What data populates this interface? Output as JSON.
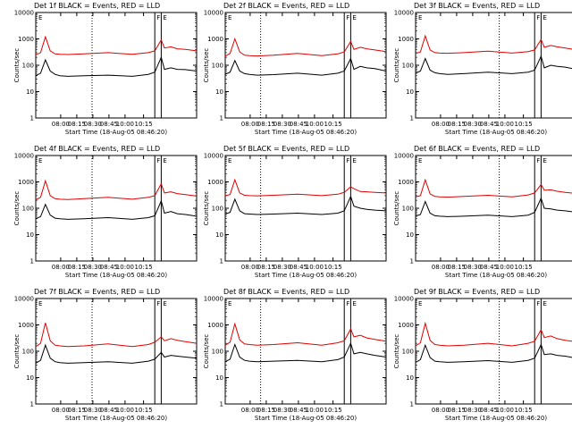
{
  "figure": {
    "colors": {
      "events": "#000000",
      "lld": "#e00000",
      "background": "#ffffff"
    },
    "start_time_label": "Start Time (18-Aug-05 08:46:20)",
    "ylabel": "Counts/sec",
    "xticks": [
      "08:00",
      "08:15",
      "08:30",
      "08:45",
      "10:00",
      "10:15"
    ],
    "yticks": [
      "1",
      "10",
      "100",
      "1000",
      "10000"
    ],
    "marker_letters": [
      "E",
      "F",
      "E"
    ]
  },
  "chart_data": [
    {
      "type": "line",
      "title": "Det 1f BLACK = Events, RED = LLD",
      "xlabel": "Start Time (18-Aug-05 08:46:20)",
      "ylabel": "Counts/sec",
      "yscale": "log",
      "ylim": [
        1,
        10000
      ],
      "xticks": [
        "08:00",
        "08:15",
        "08:30",
        "08:45",
        "10:00",
        "10:15"
      ],
      "grid": false,
      "series": [
        {
          "name": "Events",
          "color": "#000000",
          "x": [
            0,
            0.03,
            0.06,
            0.09,
            0.12,
            0.15,
            0.2,
            0.3,
            0.45,
            0.6,
            0.7,
            0.74,
            0.78,
            0.8,
            0.84,
            0.88,
            0.93,
            1
          ],
          "y": [
            40,
            50,
            160,
            60,
            45,
            40,
            38,
            40,
            42,
            38,
            45,
            55,
            200,
            70,
            80,
            70,
            68,
            60
          ]
        },
        {
          "name": "LLD",
          "color": "#e00000",
          "x": [
            0,
            0.03,
            0.06,
            0.09,
            0.12,
            0.15,
            0.2,
            0.3,
            0.45,
            0.6,
            0.7,
            0.74,
            0.78,
            0.8,
            0.84,
            0.88,
            0.93,
            1
          ],
          "y": [
            250,
            300,
            1200,
            350,
            270,
            260,
            255,
            270,
            300,
            260,
            300,
            350,
            900,
            450,
            500,
            420,
            400,
            350
          ]
        }
      ]
    },
    {
      "type": "line",
      "title": "Det 2f BLACK = Events, RED = LLD",
      "xlabel": "Start Time (18-Aug-05 08:46:20)",
      "ylabel": "Counts/sec",
      "yscale": "log",
      "ylim": [
        1,
        10000
      ],
      "xticks": [
        "08:00",
        "08:15",
        "08:30",
        "08:45",
        "10:00",
        "10:15"
      ],
      "grid": false,
      "series": [
        {
          "name": "Events",
          "color": "#000000",
          "x": [
            0,
            0.03,
            0.06,
            0.09,
            0.12,
            0.15,
            0.2,
            0.3,
            0.45,
            0.6,
            0.7,
            0.74,
            0.78,
            0.8,
            0.84,
            0.88,
            0.93,
            1
          ],
          "y": [
            45,
            55,
            150,
            60,
            48,
            45,
            42,
            44,
            50,
            42,
            50,
            60,
            180,
            70,
            90,
            80,
            75,
            60
          ]
        },
        {
          "name": "LLD",
          "color": "#e00000",
          "x": [
            0,
            0.03,
            0.06,
            0.09,
            0.12,
            0.15,
            0.2,
            0.3,
            0.45,
            0.6,
            0.7,
            0.74,
            0.78,
            0.8,
            0.84,
            0.88,
            0.93,
            1
          ],
          "y": [
            220,
            280,
            1000,
            320,
            240,
            230,
            225,
            240,
            280,
            230,
            270,
            320,
            800,
            400,
            480,
            420,
            380,
            330
          ]
        }
      ]
    },
    {
      "type": "line",
      "title": "Det 3f BLACK = Events, RED = LLD",
      "xlabel": "Start Time (18-Aug-05 08:46:20)",
      "ylabel": "Counts/sec",
      "yscale": "log",
      "ylim": [
        1,
        10000
      ],
      "xticks": [
        "08:00",
        "08:15",
        "08:30",
        "08:45",
        "10:00",
        "10:15"
      ],
      "grid": false,
      "series": [
        {
          "name": "Events",
          "color": "#000000",
          "x": [
            0,
            0.03,
            0.06,
            0.09,
            0.12,
            0.15,
            0.2,
            0.3,
            0.45,
            0.6,
            0.7,
            0.74,
            0.78,
            0.8,
            0.84,
            0.88,
            0.93,
            1
          ],
          "y": [
            50,
            60,
            180,
            65,
            52,
            48,
            45,
            48,
            55,
            48,
            55,
            65,
            220,
            80,
            100,
            90,
            85,
            70
          ]
        },
        {
          "name": "LLD",
          "color": "#e00000",
          "x": [
            0,
            0.03,
            0.06,
            0.09,
            0.12,
            0.15,
            0.2,
            0.3,
            0.45,
            0.6,
            0.7,
            0.74,
            0.78,
            0.8,
            0.84,
            0.88,
            0.93,
            1
          ],
          "y": [
            280,
            320,
            1300,
            380,
            300,
            290,
            285,
            300,
            340,
            290,
            330,
            380,
            950,
            480,
            560,
            500,
            450,
            380
          ]
        }
      ]
    },
    {
      "type": "line",
      "title": "Det 4f BLACK = Events, RED = LLD",
      "xlabel": "Start Time (18-Aug-05 08:46:20)",
      "ylabel": "Counts/sec",
      "yscale": "log",
      "ylim": [
        1,
        10000
      ],
      "xticks": [
        "08:00",
        "08:15",
        "08:30",
        "08:45",
        "10:00",
        "10:15"
      ],
      "grid": false,
      "series": [
        {
          "name": "Events",
          "color": "#000000",
          "x": [
            0,
            0.03,
            0.06,
            0.09,
            0.12,
            0.15,
            0.2,
            0.3,
            0.45,
            0.6,
            0.7,
            0.74,
            0.78,
            0.8,
            0.84,
            0.88,
            0.93,
            1
          ],
          "y": [
            40,
            48,
            140,
            55,
            42,
            40,
            38,
            40,
            44,
            38,
            44,
            52,
            190,
            65,
            75,
            62,
            58,
            50
          ]
        },
        {
          "name": "LLD",
          "color": "#e00000",
          "x": [
            0,
            0.03,
            0.06,
            0.09,
            0.12,
            0.15,
            0.2,
            0.3,
            0.45,
            0.6,
            0.7,
            0.74,
            0.78,
            0.8,
            0.84,
            0.88,
            0.93,
            1
          ],
          "y": [
            210,
            260,
            1100,
            300,
            230,
            220,
            215,
            230,
            260,
            220,
            260,
            300,
            850,
            380,
            420,
            360,
            330,
            290
          ]
        }
      ]
    },
    {
      "type": "line",
      "title": "Det 5f BLACK = Events, RED = LLD",
      "xlabel": "Start Time (18-Aug-05 08:46:20)",
      "ylabel": "Counts/sec",
      "yscale": "log",
      "ylim": [
        1,
        10000
      ],
      "xticks": [
        "08:00",
        "08:15",
        "08:30",
        "08:45",
        "10:00",
        "10:15"
      ],
      "grid": false,
      "series": [
        {
          "name": "Events",
          "color": "#000000",
          "x": [
            0,
            0.03,
            0.06,
            0.09,
            0.12,
            0.15,
            0.2,
            0.3,
            0.45,
            0.6,
            0.7,
            0.74,
            0.78,
            0.8,
            0.84,
            0.88,
            0.93,
            1
          ],
          "y": [
            60,
            70,
            220,
            80,
            62,
            60,
            58,
            60,
            65,
            58,
            65,
            80,
            280,
            120,
            100,
            90,
            85,
            80
          ]
        },
        {
          "name": "LLD",
          "color": "#e00000",
          "x": [
            0,
            0.03,
            0.06,
            0.09,
            0.12,
            0.15,
            0.2,
            0.3,
            0.45,
            0.6,
            0.7,
            0.74,
            0.78,
            0.8,
            0.84,
            0.88,
            0.93,
            1
          ],
          "y": [
            300,
            330,
            1200,
            380,
            310,
            300,
            295,
            310,
            340,
            300,
            340,
            400,
            650,
            550,
            430,
            420,
            400,
            380
          ]
        }
      ]
    },
    {
      "type": "line",
      "title": "Det 6f BLACK = Events, RED = LLD",
      "xlabel": "Start Time (18-Aug-05 08:46:20)",
      "ylabel": "Counts/sec",
      "yscale": "log",
      "ylim": [
        1,
        10000
      ],
      "xticks": [
        "08:00",
        "08:15",
        "08:30",
        "08:45",
        "10:00",
        "10:15"
      ],
      "grid": false,
      "series": [
        {
          "name": "Events",
          "color": "#000000",
          "x": [
            0,
            0.03,
            0.06,
            0.09,
            0.12,
            0.15,
            0.2,
            0.3,
            0.45,
            0.6,
            0.7,
            0.74,
            0.78,
            0.8,
            0.84,
            0.88,
            0.93,
            1
          ],
          "y": [
            50,
            58,
            180,
            65,
            52,
            50,
            48,
            50,
            55,
            48,
            55,
            70,
            240,
            100,
            95,
            85,
            80,
            70
          ]
        },
        {
          "name": "LLD",
          "color": "#e00000",
          "x": [
            0,
            0.03,
            0.06,
            0.09,
            0.12,
            0.15,
            0.2,
            0.3,
            0.45,
            0.6,
            0.7,
            0.74,
            0.78,
            0.8,
            0.84,
            0.88,
            0.93,
            1
          ],
          "y": [
            270,
            300,
            1200,
            350,
            280,
            270,
            265,
            280,
            310,
            270,
            320,
            380,
            800,
            480,
            500,
            440,
            400,
            360
          ]
        }
      ]
    },
    {
      "type": "line",
      "title": "Det 7f BLACK = Events, RED = LLD",
      "xlabel": "Start Time (18-Aug-05 08:46:20)",
      "ylabel": "Counts/sec",
      "yscale": "log",
      "ylim": [
        1,
        10000
      ],
      "xticks": [
        "08:00",
        "08:15",
        "08:30",
        "08:45",
        "10:00",
        "10:15"
      ],
      "grid": false,
      "series": [
        {
          "name": "Events",
          "color": "#000000",
          "x": [
            0,
            0.03,
            0.06,
            0.09,
            0.12,
            0.15,
            0.2,
            0.3,
            0.45,
            0.6,
            0.7,
            0.74,
            0.78,
            0.8,
            0.84,
            0.88,
            0.93,
            1
          ],
          "y": [
            35,
            45,
            170,
            55,
            40,
            37,
            35,
            37,
            40,
            35,
            42,
            50,
            90,
            60,
            70,
            65,
            60,
            55
          ]
        },
        {
          "name": "LLD",
          "color": "#e00000",
          "x": [
            0,
            0.03,
            0.06,
            0.09,
            0.12,
            0.15,
            0.2,
            0.3,
            0.45,
            0.6,
            0.7,
            0.74,
            0.78,
            0.8,
            0.84,
            0.88,
            0.93,
            1
          ],
          "y": [
            150,
            200,
            1200,
            250,
            170,
            160,
            150,
            160,
            190,
            150,
            180,
            220,
            350,
            250,
            300,
            260,
            230,
            200
          ]
        }
      ]
    },
    {
      "type": "line",
      "title": "Det 8f BLACK = Events, RED = LLD",
      "xlabel": "Start Time (18-Aug-05 08:46:20)",
      "ylabel": "Counts/sec",
      "yscale": "log",
      "ylim": [
        1,
        10000
      ],
      "xticks": [
        "08:00",
        "08:15",
        "08:30",
        "08:45",
        "10:00",
        "10:15"
      ],
      "grid": false,
      "series": [
        {
          "name": "Events",
          "color": "#000000",
          "x": [
            0,
            0.03,
            0.06,
            0.09,
            0.12,
            0.15,
            0.2,
            0.3,
            0.45,
            0.6,
            0.7,
            0.74,
            0.78,
            0.8,
            0.84,
            0.88,
            0.93,
            1
          ],
          "y": [
            40,
            50,
            180,
            60,
            45,
            42,
            40,
            42,
            45,
            40,
            48,
            60,
            200,
            80,
            90,
            80,
            70,
            60
          ]
        },
        {
          "name": "LLD",
          "color": "#e00000",
          "x": [
            0,
            0.03,
            0.06,
            0.09,
            0.12,
            0.15,
            0.2,
            0.3,
            0.45,
            0.6,
            0.7,
            0.74,
            0.78,
            0.8,
            0.84,
            0.88,
            0.93,
            1
          ],
          "y": [
            170,
            220,
            1100,
            270,
            190,
            180,
            170,
            180,
            210,
            170,
            210,
            250,
            700,
            350,
            400,
            320,
            280,
            240
          ]
        }
      ]
    },
    {
      "type": "line",
      "title": "Det 9f BLACK = Events, RED = LLD",
      "xlabel": "Start Time (18-Aug-05 08:46:20)",
      "ylabel": "Counts/sec",
      "yscale": "log",
      "ylim": [
        1,
        10000
      ],
      "xticks": [
        "08:00",
        "08:15",
        "08:30",
        "08:45",
        "10:00",
        "10:15"
      ],
      "grid": false,
      "series": [
        {
          "name": "Events",
          "color": "#000000",
          "x": [
            0,
            0.03,
            0.06,
            0.09,
            0.12,
            0.15,
            0.2,
            0.3,
            0.45,
            0.6,
            0.7,
            0.74,
            0.78,
            0.8,
            0.84,
            0.88,
            0.93,
            1
          ],
          "y": [
            38,
            48,
            170,
            58,
            42,
            40,
            38,
            40,
            44,
            38,
            45,
            55,
            180,
            75,
            80,
            70,
            65,
            55
          ]
        },
        {
          "name": "LLD",
          "color": "#e00000",
          "x": [
            0,
            0.03,
            0.06,
            0.09,
            0.12,
            0.15,
            0.2,
            0.3,
            0.45,
            0.6,
            0.7,
            0.74,
            0.78,
            0.8,
            0.84,
            0.88,
            0.93,
            1
          ],
          "y": [
            160,
            210,
            1150,
            260,
            180,
            170,
            160,
            170,
            200,
            160,
            200,
            240,
            650,
            330,
            380,
            300,
            260,
            230
          ]
        }
      ]
    }
  ]
}
